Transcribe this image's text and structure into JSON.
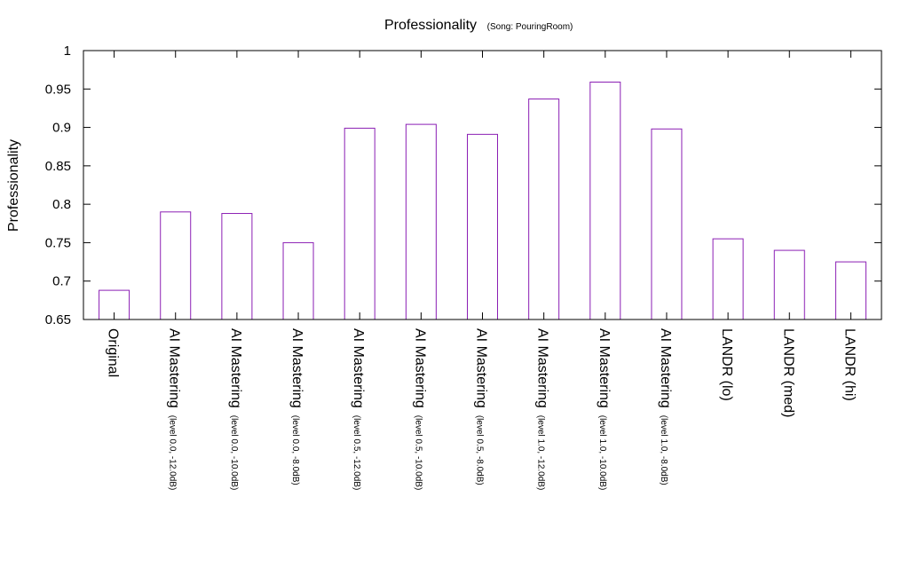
{
  "colors": {
    "bar_stroke": "#8b1fb4",
    "axis": "#000000"
  },
  "chart_data": {
    "type": "bar",
    "title": "Professionality",
    "subtitle": "(Song: PouringRoom)",
    "xlabel": "",
    "ylabel": "Professionality",
    "ylim": [
      0.65,
      1
    ],
    "yticks": [
      "0.65",
      "0.7",
      "0.75",
      "0.8",
      "0.85",
      "0.9",
      "0.95",
      "1"
    ],
    "grid": false,
    "categories": [
      {
        "label": "Original",
        "sublabel": ""
      },
      {
        "label": "AI Mastering",
        "sublabel": "(level 0.0, -12.0dB)"
      },
      {
        "label": "AI Mastering",
        "sublabel": "(level 0.0, -10.0dB)"
      },
      {
        "label": "AI Mastering",
        "sublabel": "(level 0.0, -8.0dB)"
      },
      {
        "label": "AI Mastering",
        "sublabel": "(level 0.5, -12.0dB)"
      },
      {
        "label": "AI Mastering",
        "sublabel": "(level 0.5, -10.0dB)"
      },
      {
        "label": "AI Mastering",
        "sublabel": "(level 0.5, -8.0dB)"
      },
      {
        "label": "AI Mastering",
        "sublabel": "(level 1.0, -12.0dB)"
      },
      {
        "label": "AI Mastering",
        "sublabel": "(level 1.0, -10.0dB)"
      },
      {
        "label": "AI Mastering",
        "sublabel": "(level 1.0, -8.0dB)"
      },
      {
        "label": "LANDR (lo)",
        "sublabel": ""
      },
      {
        "label": "LANDR (med)",
        "sublabel": ""
      },
      {
        "label": "LANDR (hi)",
        "sublabel": ""
      }
    ],
    "values": [
      0.688,
      0.79,
      0.788,
      0.75,
      0.899,
      0.904,
      0.891,
      0.937,
      0.959,
      0.898,
      0.755,
      0.74,
      0.725
    ]
  }
}
